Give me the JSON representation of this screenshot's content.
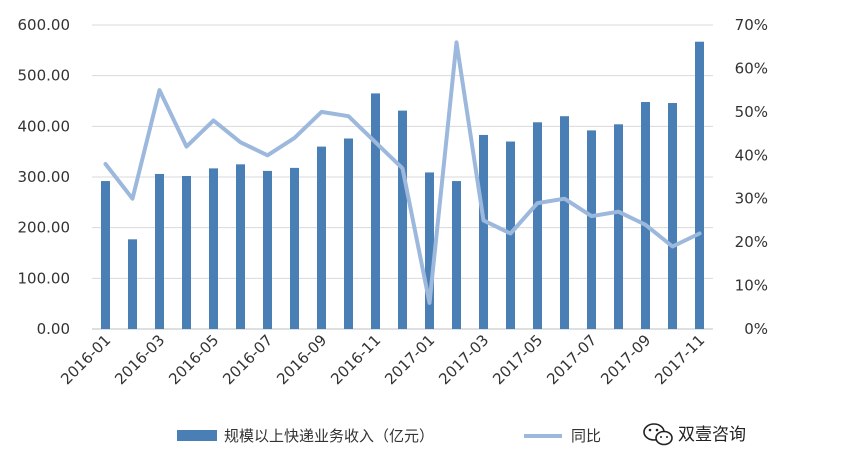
{
  "chart_data": {
    "type": "bar",
    "categories": [
      "2016-01",
      "2016-02",
      "2016-03",
      "2016-04",
      "2016-05",
      "2016-06",
      "2016-07",
      "2016-08",
      "2016-09",
      "2016-10",
      "2016-11",
      "2016-12",
      "2017-01",
      "2017-02",
      "2017-03",
      "2017-04",
      "2017-05",
      "2017-06",
      "2017-07",
      "2017-08",
      "2017-09",
      "2017-10",
      "2017-11"
    ],
    "x_tick_labels": [
      "2016-01",
      "2016-03",
      "2016-05",
      "2016-07",
      "2016-09",
      "2016-11",
      "2017-01",
      "2017-03",
      "2017-05",
      "2017-07",
      "2017-09",
      "2017-11"
    ],
    "series": [
      {
        "name": "规模以上快递业务收入（亿元）",
        "type": "bar",
        "axis": "left",
        "color": "#4a7fb5",
        "values": [
          292,
          177,
          306,
          302,
          317,
          325,
          312,
          318,
          360,
          376,
          465,
          431,
          309,
          292,
          383,
          370,
          408,
          420,
          392,
          404,
          448,
          446,
          567
        ]
      },
      {
        "name": "同比",
        "type": "line",
        "axis": "right",
        "color": "#9db8dd",
        "values": [
          38,
          30,
          55,
          42,
          48,
          43,
          40,
          44,
          50,
          49,
          43,
          37,
          6,
          66,
          25,
          22,
          29,
          30,
          26,
          27,
          24,
          19,
          22
        ]
      }
    ],
    "ylim": [
      0,
      600
    ],
    "y_tick_labels": [
      "0.00",
      "100.00",
      "200.00",
      "300.00",
      "400.00",
      "500.00",
      "600.00"
    ],
    "y2lim": [
      0,
      70
    ],
    "y2_tick_labels": [
      "0%",
      "10%",
      "20%",
      "30%",
      "40%",
      "50%",
      "60%",
      "70%"
    ],
    "grid": "horizontal",
    "legend_position": "bottom"
  },
  "watermark": {
    "text": "双壹咨询",
    "icon": "wechat-icon"
  }
}
